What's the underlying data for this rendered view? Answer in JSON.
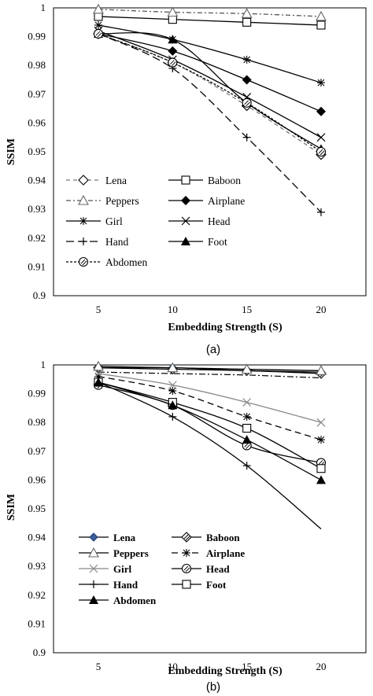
{
  "chart_data": [
    {
      "type": "line",
      "caption": "(a)",
      "xlabel": "Embedding Strength (S)",
      "ylabel": "SSIM",
      "x": [
        5,
        10,
        15,
        20
      ],
      "ylim": [
        0.9,
        1.0
      ],
      "yticks": [
        "0.9",
        "0.91",
        "0.92",
        "0.93",
        "0.94",
        "0.95",
        "0.96",
        "0.97",
        "0.98",
        "0.99",
        "1"
      ],
      "xticks": [
        "5",
        "10",
        "15",
        "20"
      ],
      "grid": false,
      "legend_placement": "bottom-left",
      "series": [
        {
          "name": "Lena",
          "values": [
            0.991,
            0.981,
            0.966,
            0.949
          ],
          "marker": "diamond-open",
          "dash": "5,4",
          "color": "#777777"
        },
        {
          "name": "Baboon",
          "values": [
            0.997,
            0.996,
            0.995,
            0.994
          ],
          "marker": "square-open",
          "dash": "",
          "color": "#000000"
        },
        {
          "name": "Peppers",
          "values": [
            0.9995,
            0.9985,
            0.998,
            0.997
          ],
          "marker": "triangle-open",
          "dash": "6,3,2,3",
          "color": "#555555"
        },
        {
          "name": "Airplane",
          "values": [
            0.991,
            0.985,
            0.975,
            0.964
          ],
          "marker": "diamond",
          "dash": "",
          "color": "#000000"
        },
        {
          "name": "Girl",
          "values": [
            0.994,
            0.989,
            0.982,
            0.974
          ],
          "marker": "star",
          "dash": "",
          "color": "#000000"
        },
        {
          "name": "Head",
          "values": [
            0.992,
            0.982,
            0.969,
            0.955
          ],
          "marker": "x",
          "dash": "",
          "color": "#000000"
        },
        {
          "name": "Hand",
          "values": [
            0.991,
            0.979,
            0.955,
            0.929
          ],
          "marker": "plus",
          "dash": "10,5",
          "color": "#000000"
        },
        {
          "name": "Foot",
          "values": [
            0.991,
            0.989,
            0.967,
            0.951
          ],
          "marker": "triangle",
          "dash": "",
          "color": "#000000"
        },
        {
          "name": "Abdomen",
          "values": [
            0.991,
            0.981,
            0.967,
            0.95
          ],
          "marker": "circle-hatched",
          "dash": "3,2",
          "color": "#000000"
        }
      ]
    },
    {
      "type": "line",
      "caption": "(b)",
      "xlabel": "Embedding Strength (S)",
      "ylabel": "SSIM",
      "x": [
        5,
        10,
        15,
        20
      ],
      "ylim": [
        0.9,
        1.0
      ],
      "yticks": [
        "0.9",
        "0.91",
        "0.92",
        "0.93",
        "0.94",
        "0.95",
        "0.96",
        "0.97",
        "0.98",
        "0.99",
        "1"
      ],
      "xticks": [
        "5",
        "10",
        "15",
        "20"
      ],
      "grid": false,
      "legend_placement": "bottom-left",
      "series": [
        {
          "name": "Lena",
          "values": [
            0.999,
            0.999,
            0.998,
            0.9975
          ],
          "marker": "diamond-blue",
          "dash": "",
          "color": "#000000"
        },
        {
          "name": "Baboon",
          "values": [
            0.999,
            0.9985,
            0.998,
            0.997
          ],
          "marker": "diamond-hatched",
          "dash": "",
          "color": "#000000"
        },
        {
          "name": "Peppers",
          "values": [
            0.9995,
            0.999,
            0.9985,
            0.998
          ],
          "marker": "triangle-open",
          "dash": "",
          "color": "#000000"
        },
        {
          "name": "Airplane",
          "values": [
            0.996,
            0.991,
            0.982,
            0.974
          ],
          "marker": "star",
          "dash": "8,5",
          "color": "#000000"
        },
        {
          "name": "Girl",
          "values": [
            0.997,
            0.993,
            0.987,
            0.98
          ],
          "marker": "x",
          "dash": "",
          "color": "#888888"
        },
        {
          "name": "Head",
          "values": [
            0.993,
            0.986,
            0.972,
            0.966
          ],
          "marker": "circle-hatched",
          "dash": "",
          "color": "#000000"
        },
        {
          "name": "Hand",
          "values": [
            0.994,
            0.982,
            0.965,
            0.943
          ],
          "marker": "plus",
          "dash": "",
          "color": "#000000"
        },
        {
          "name": "Foot",
          "values": [
            0.994,
            0.987,
            0.978,
            0.964
          ],
          "marker": "square-open",
          "dash": "",
          "color": "#000000"
        },
        {
          "name": "Abdomen",
          "values": [
            0.994,
            0.986,
            0.974,
            0.96
          ],
          "marker": "triangle",
          "dash": "",
          "color": "#000000"
        }
      ],
      "extra_dashdot_line": {
        "values": [
          0.9975,
          0.997,
          0.9965,
          0.9955
        ]
      }
    }
  ]
}
